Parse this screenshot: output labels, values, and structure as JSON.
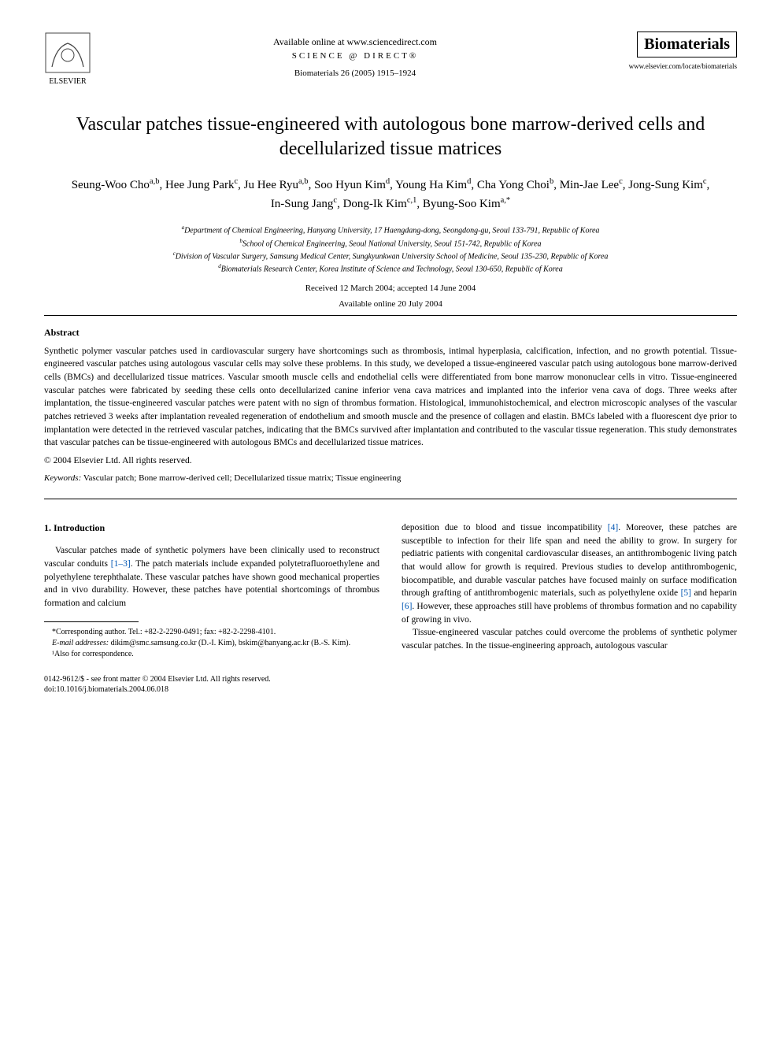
{
  "header": {
    "available_online": "Available online at www.sciencedirect.com",
    "science_direct": "SCIENCE @ DIRECT®",
    "journal_reference": "Biomaterials 26 (2005) 1915–1924",
    "journal_name": "Biomaterials",
    "journal_url": "www.elsevier.com/locate/biomaterials",
    "elsevier_label": "ELSEVIER"
  },
  "article": {
    "title": "Vascular patches tissue-engineered with autologous bone marrow-derived cells and decellularized tissue matrices",
    "authors_html": "Seung-Woo Cho<sup>a,b</sup>, Hee Jung Park<sup>c</sup>, Ju Hee Ryu<sup>a,b</sup>, Soo Hyun Kim<sup>d</sup>, Young Ha Kim<sup>d</sup>, Cha Yong Choi<sup>b</sup>, Min-Jae Lee<sup>c</sup>, Jong-Sung Kim<sup>c</sup>, In-Sung Jang<sup>c</sup>, Dong-Ik Kim<sup>c,1</sup>, Byung-Soo Kim<sup>a,*</sup>",
    "affiliations": {
      "a": "Department of Chemical Engineering, Hanyang University, 17 Haengdang-dong, Seongdong-gu, Seoul 133-791, Republic of Korea",
      "b": "School of Chemical Engineering, Seoul National University, Seoul 151-742, Republic of Korea",
      "c": "Division of Vascular Surgery, Samsung Medical Center, Sungkyunkwan University School of Medicine, Seoul 135-230, Republic of Korea",
      "d": "Biomaterials Research Center, Korea Institute of Science and Technology, Seoul 130-650, Republic of Korea"
    },
    "received": "Received 12 March 2004; accepted 14 June 2004",
    "available": "Available online 20 July 2004"
  },
  "abstract": {
    "header": "Abstract",
    "text": "Synthetic polymer vascular patches used in cardiovascular surgery have shortcomings such as thrombosis, intimal hyperplasia, calcification, infection, and no growth potential. Tissue-engineered vascular patches using autologous vascular cells may solve these problems. In this study, we developed a tissue-engineered vascular patch using autologous bone marrow-derived cells (BMCs) and decellularized tissue matrices. Vascular smooth muscle cells and endothelial cells were differentiated from bone marrow mononuclear cells in vitro. Tissue-engineered vascular patches were fabricated by seeding these cells onto decellularized canine inferior vena cava matrices and implanted into the inferior vena cava of dogs. Three weeks after implantation, the tissue-engineered vascular patches were patent with no sign of thrombus formation. Histological, immunohistochemical, and electron microscopic analyses of the vascular patches retrieved 3 weeks after implantation revealed regeneration of endothelium and smooth muscle and the presence of collagen and elastin. BMCs labeled with a fluorescent dye prior to implantation were detected in the retrieved vascular patches, indicating that the BMCs survived after implantation and contributed to the vascular tissue regeneration. This study demonstrates that vascular patches can be tissue-engineered with autologous BMCs and decellularized tissue matrices.",
    "copyright": "© 2004 Elsevier Ltd. All rights reserved."
  },
  "keywords": {
    "label": "Keywords:",
    "text": "Vascular patch; Bone marrow-derived cell; Decellularized tissue matrix; Tissue engineering"
  },
  "body": {
    "section_number": "1.",
    "section_title": "Introduction",
    "left_para": "Vascular patches made of synthetic polymers have been clinically used to reconstruct vascular conduits [1–3]. The patch materials include expanded polytetrafluoroethylene and polyethylene terephthalate. These vascular patches have shown good mechanical properties and in vivo durability. However, these patches have potential shortcomings of thrombus formation and calcium",
    "right_para1": "deposition due to blood and tissue incompatibility [4]. Moreover, these patches are susceptible to infection for their life span and need the ability to grow. In surgery for pediatric patients with congenital cardiovascular diseases, an antithrombogenic living patch that would allow for growth is required. Previous studies to develop antithrombogenic, biocompatible, and durable vascular patches have focused mainly on surface modification through grafting of antithrombogenic materials, such as polyethylene oxide [5] and heparin [6]. However, these approaches still have problems of thrombus formation and no capability of growing in vivo.",
    "right_para2": "Tissue-engineered vascular patches could overcome the problems of synthetic polymer vascular patches. In the tissue-engineering approach, autologous vascular"
  },
  "footnotes": {
    "corresponding": "*Corresponding author. Tel.: +82-2-2290-0491; fax: +82-2-2298-4101.",
    "emails_label": "E-mail addresses:",
    "emails": "dikim@smc.samsung.co.kr (D.-I. Kim), bskim@hanyang.ac.kr (B.-S. Kim).",
    "also": "¹Also for correspondence."
  },
  "footer": {
    "issn": "0142-9612/$ - see front matter © 2004 Elsevier Ltd. All rights reserved.",
    "doi": "doi:10.1016/j.biomaterials.2004.06.018"
  },
  "refs": {
    "r1_3": "[1–3]",
    "r4": "[4]",
    "r5": "[5]",
    "r6": "[6]"
  },
  "colors": {
    "text": "#000000",
    "link": "#0056b3",
    "background": "#ffffff"
  },
  "typography": {
    "title_fontsize": 24,
    "author_fontsize": 15,
    "affil_fontsize": 10,
    "body_fontsize": 11.5,
    "footnote_fontsize": 10
  }
}
